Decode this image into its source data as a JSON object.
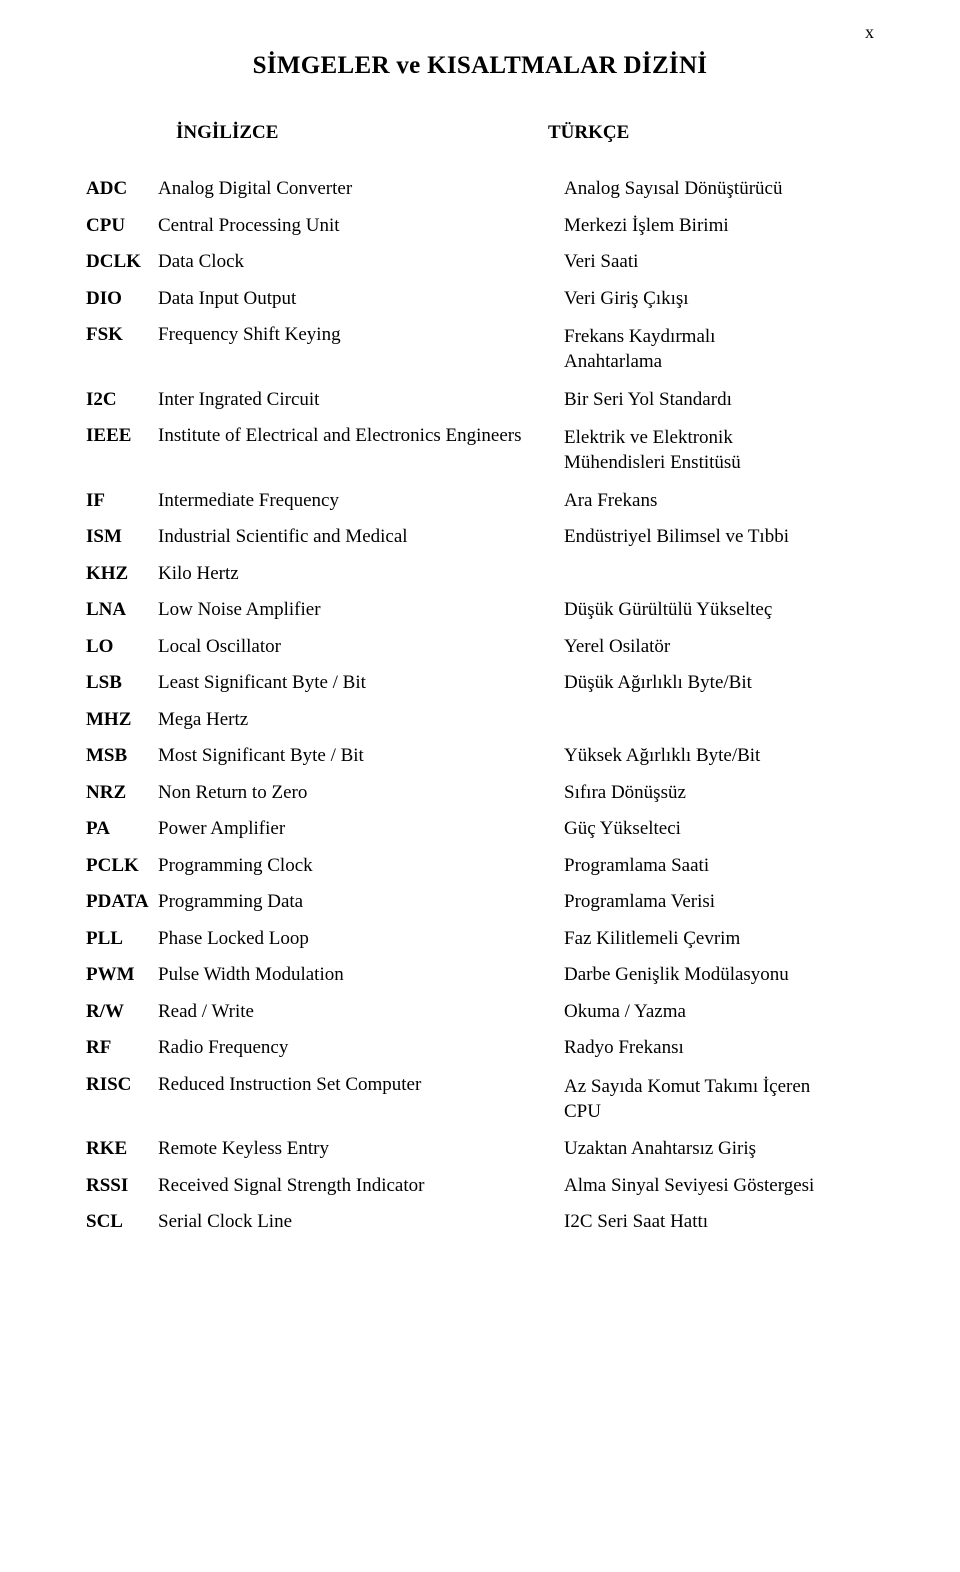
{
  "pagenum": "x",
  "title": "SİMGELER ve KISALTMALAR DİZİNİ",
  "headers": {
    "en": "İNGİLİZCE",
    "tr": "TÜRKÇE"
  },
  "rows": [
    {
      "abbr": "ADC",
      "en": "Analog Digital Converter",
      "tr": "Analog Sayısal Dönüştürücü"
    },
    {
      "abbr": "CPU",
      "en": "Central Processing Unit",
      "tr": "Merkezi İşlem Birimi"
    },
    {
      "abbr": "DCLK",
      "en": "Data Clock",
      "tr": "Veri Saati"
    },
    {
      "abbr": "DIO",
      "en": "Data Input Output",
      "tr": "Veri Giriş Çıkışı"
    },
    {
      "abbr": "FSK",
      "en": "Frequency Shift Keying",
      "tr": "Frekans Kaydırmalı\nAnahtarlama",
      "ml": true
    },
    {
      "abbr": "I2C",
      "en": "Inter Ingrated Circuit",
      "tr": "Bir Seri Yol Standardı"
    },
    {
      "abbr": "IEEE",
      "en": "Institute of Electrical and Electronics Engineers",
      "tr": "Elektrik ve Elektronik\nMühendisleri Enstitüsü",
      "ml": true
    },
    {
      "abbr": "IF",
      "en": "Intermediate Frequency",
      "tr": "Ara Frekans"
    },
    {
      "abbr": "ISM",
      "en": "Industrial Scientific and Medical",
      "tr": "Endüstriyel Bilimsel ve Tıbbi"
    },
    {
      "abbr": "KHZ",
      "en": "Kilo Hertz",
      "tr": ""
    },
    {
      "abbr": "LNA",
      "en": "Low Noise Amplifier",
      "tr": "Düşük Gürültülü Yükselteç"
    },
    {
      "abbr": "LO",
      "en": "Local Oscillator",
      "tr": "Yerel Osilatör"
    },
    {
      "abbr": "LSB",
      "en": "Least Significant Byte / Bit",
      "tr": "Düşük Ağırlıklı Byte/Bit"
    },
    {
      "abbr": "MHZ",
      "en": "Mega Hertz",
      "tr": ""
    },
    {
      "abbr": "MSB",
      "en": "Most Significant Byte / Bit",
      "tr": "Yüksek Ağırlıklı Byte/Bit"
    },
    {
      "abbr": "NRZ",
      "en": "Non Return to Zero",
      "tr": "Sıfıra Dönüşsüz"
    },
    {
      "abbr": "PA",
      "en": "Power Amplifier",
      "tr": "Güç Yükselteci"
    },
    {
      "abbr": "PCLK",
      "en": "Programming Clock",
      "tr": "Programlama Saati"
    },
    {
      "abbr": "PDATA",
      "en": "Programming Data",
      "tr": "Programlama Verisi"
    },
    {
      "abbr": "PLL",
      "en": "Phase Locked Loop",
      "tr": "Faz Kilitlemeli Çevrim"
    },
    {
      "abbr": "PWM",
      "en": "Pulse Width Modulation",
      "tr": "Darbe Genişlik Modülasyonu"
    },
    {
      "abbr": "R/W",
      "en": "Read / Write",
      "tr": "Okuma / Yazma"
    },
    {
      "abbr": "RF",
      "en": "Radio Frequency",
      "tr": "Radyo Frekansı"
    },
    {
      "abbr": "RISC",
      "en": "Reduced Instruction Set Computer",
      "tr": "Az Sayıda Komut Takımı İçeren\nCPU",
      "ml": true
    },
    {
      "abbr": "RKE",
      "en": "Remote Keyless Entry",
      "tr": "Uzaktan Anahtarsız Giriş"
    },
    {
      "abbr": "RSSI",
      "en": "Received Signal Strength Indicator",
      "tr": "Alma Sinyal Seviyesi Göstergesi"
    },
    {
      "abbr": "SCL",
      "en": "Serial Clock Line",
      "tr": "I2C Seri Saat Hattı"
    }
  ]
}
